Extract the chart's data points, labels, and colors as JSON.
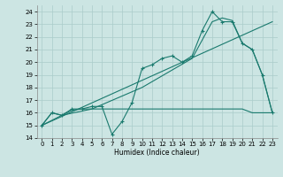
{
  "xlabel": "Humidex (Indice chaleur)",
  "xlim": [
    -0.5,
    23.5
  ],
  "ylim": [
    14,
    24.5
  ],
  "xticks": [
    0,
    1,
    2,
    3,
    4,
    5,
    6,
    7,
    8,
    9,
    10,
    11,
    12,
    13,
    14,
    15,
    16,
    17,
    18,
    19,
    20,
    21,
    22,
    23
  ],
  "yticks": [
    14,
    15,
    16,
    17,
    18,
    19,
    20,
    21,
    22,
    23,
    24
  ],
  "bg_color": "#cce5e3",
  "grid_color": "#aaccca",
  "line_color": "#1a7a6e",
  "line_marker": {
    "x": [
      0,
      1,
      2,
      3,
      4,
      5,
      6,
      7,
      8,
      9,
      10,
      11,
      12,
      13,
      14,
      15,
      16,
      17,
      18,
      19,
      20,
      21,
      22,
      23
    ],
    "y": [
      15.0,
      16.0,
      15.8,
      16.3,
      16.3,
      16.5,
      16.5,
      14.3,
      15.3,
      16.8,
      19.5,
      19.8,
      20.3,
      20.5,
      20.0,
      20.5,
      22.5,
      24.0,
      23.2,
      23.2,
      21.5,
      21.0,
      19.0,
      16.0
    ]
  },
  "line_smooth": {
    "x": [
      0,
      2,
      5,
      10,
      15,
      17,
      18,
      19,
      20,
      21,
      22,
      23
    ],
    "y": [
      15.0,
      15.8,
      16.3,
      18.0,
      20.3,
      23.2,
      23.5,
      23.3,
      21.5,
      21.0,
      19.0,
      16.0
    ]
  },
  "line_flat": {
    "x": [
      0,
      1,
      2,
      3,
      4,
      5,
      6,
      10,
      15,
      20,
      21,
      22,
      23
    ],
    "y": [
      15.0,
      16.0,
      15.8,
      16.2,
      16.3,
      16.3,
      16.3,
      16.3,
      16.3,
      16.3,
      16.0,
      16.0,
      16.0
    ]
  },
  "line_diag": {
    "x": [
      0,
      23
    ],
    "y": [
      15.0,
      23.2
    ]
  }
}
